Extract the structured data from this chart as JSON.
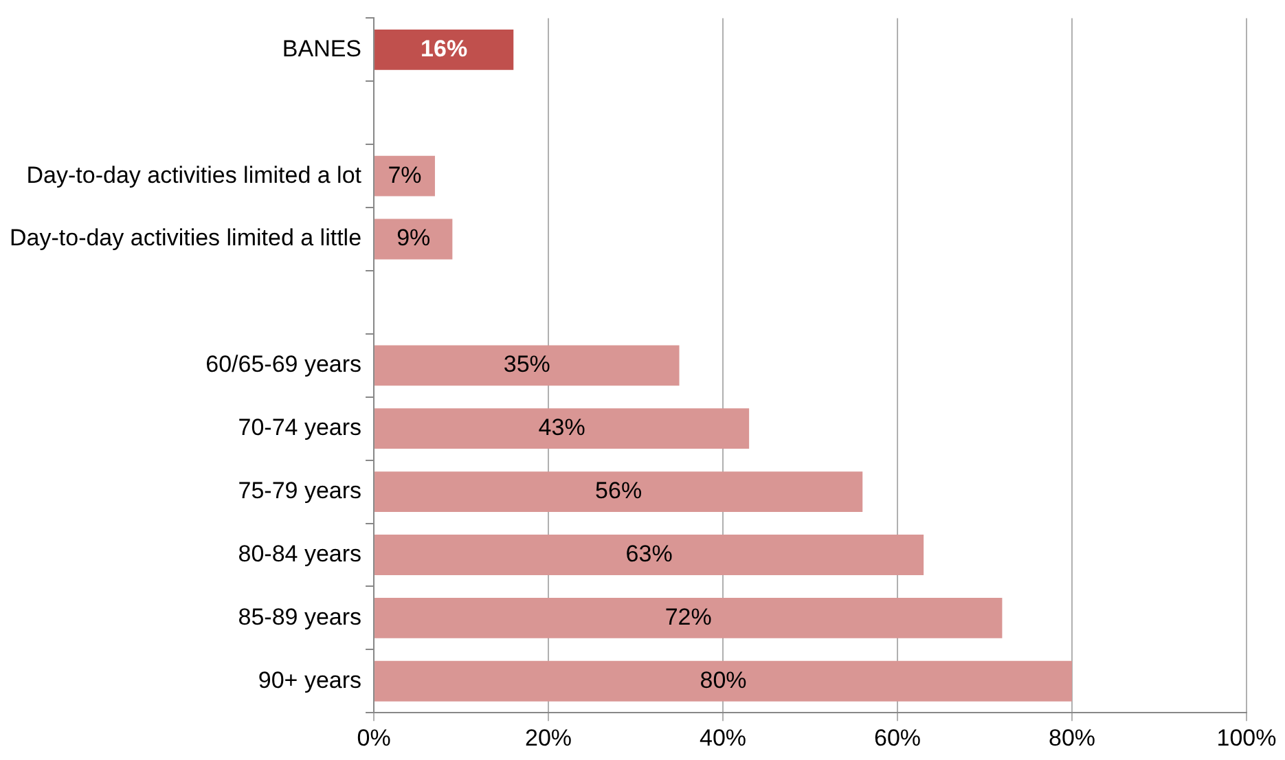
{
  "chart_data": {
    "type": "bar",
    "orientation": "horizontal",
    "categories": [
      "BANES",
      null,
      "Day-to-day activities limited a lot",
      "Day-to-day activities limited a little",
      null,
      "60/65-69 years",
      "70-74 years",
      "75-79 years",
      "80-84 years",
      "85-89 years",
      "90+ years"
    ],
    "values": [
      16,
      null,
      7,
      9,
      null,
      35,
      43,
      56,
      63,
      72,
      80
    ],
    "colors": [
      "#c0504d",
      null,
      "#d99694",
      "#d99694",
      null,
      "#d99694",
      "#d99694",
      "#d99694",
      "#d99694",
      "#d99694",
      "#d99694"
    ],
    "xlim": [
      0,
      100
    ],
    "xticks": [
      {
        "value": 0,
        "label": "0%"
      },
      {
        "value": 20,
        "label": "20%"
      },
      {
        "value": 40,
        "label": "40%"
      },
      {
        "value": 60,
        "label": "60%"
      },
      {
        "value": 80,
        "label": "80%"
      },
      {
        "value": 100,
        "label": "100%"
      }
    ],
    "value_labels": [
      "16%",
      null,
      "7%",
      "9%",
      null,
      "35%",
      "43%",
      "56%",
      "63%",
      "72%",
      "80%"
    ],
    "grid": "x",
    "legend": false
  }
}
